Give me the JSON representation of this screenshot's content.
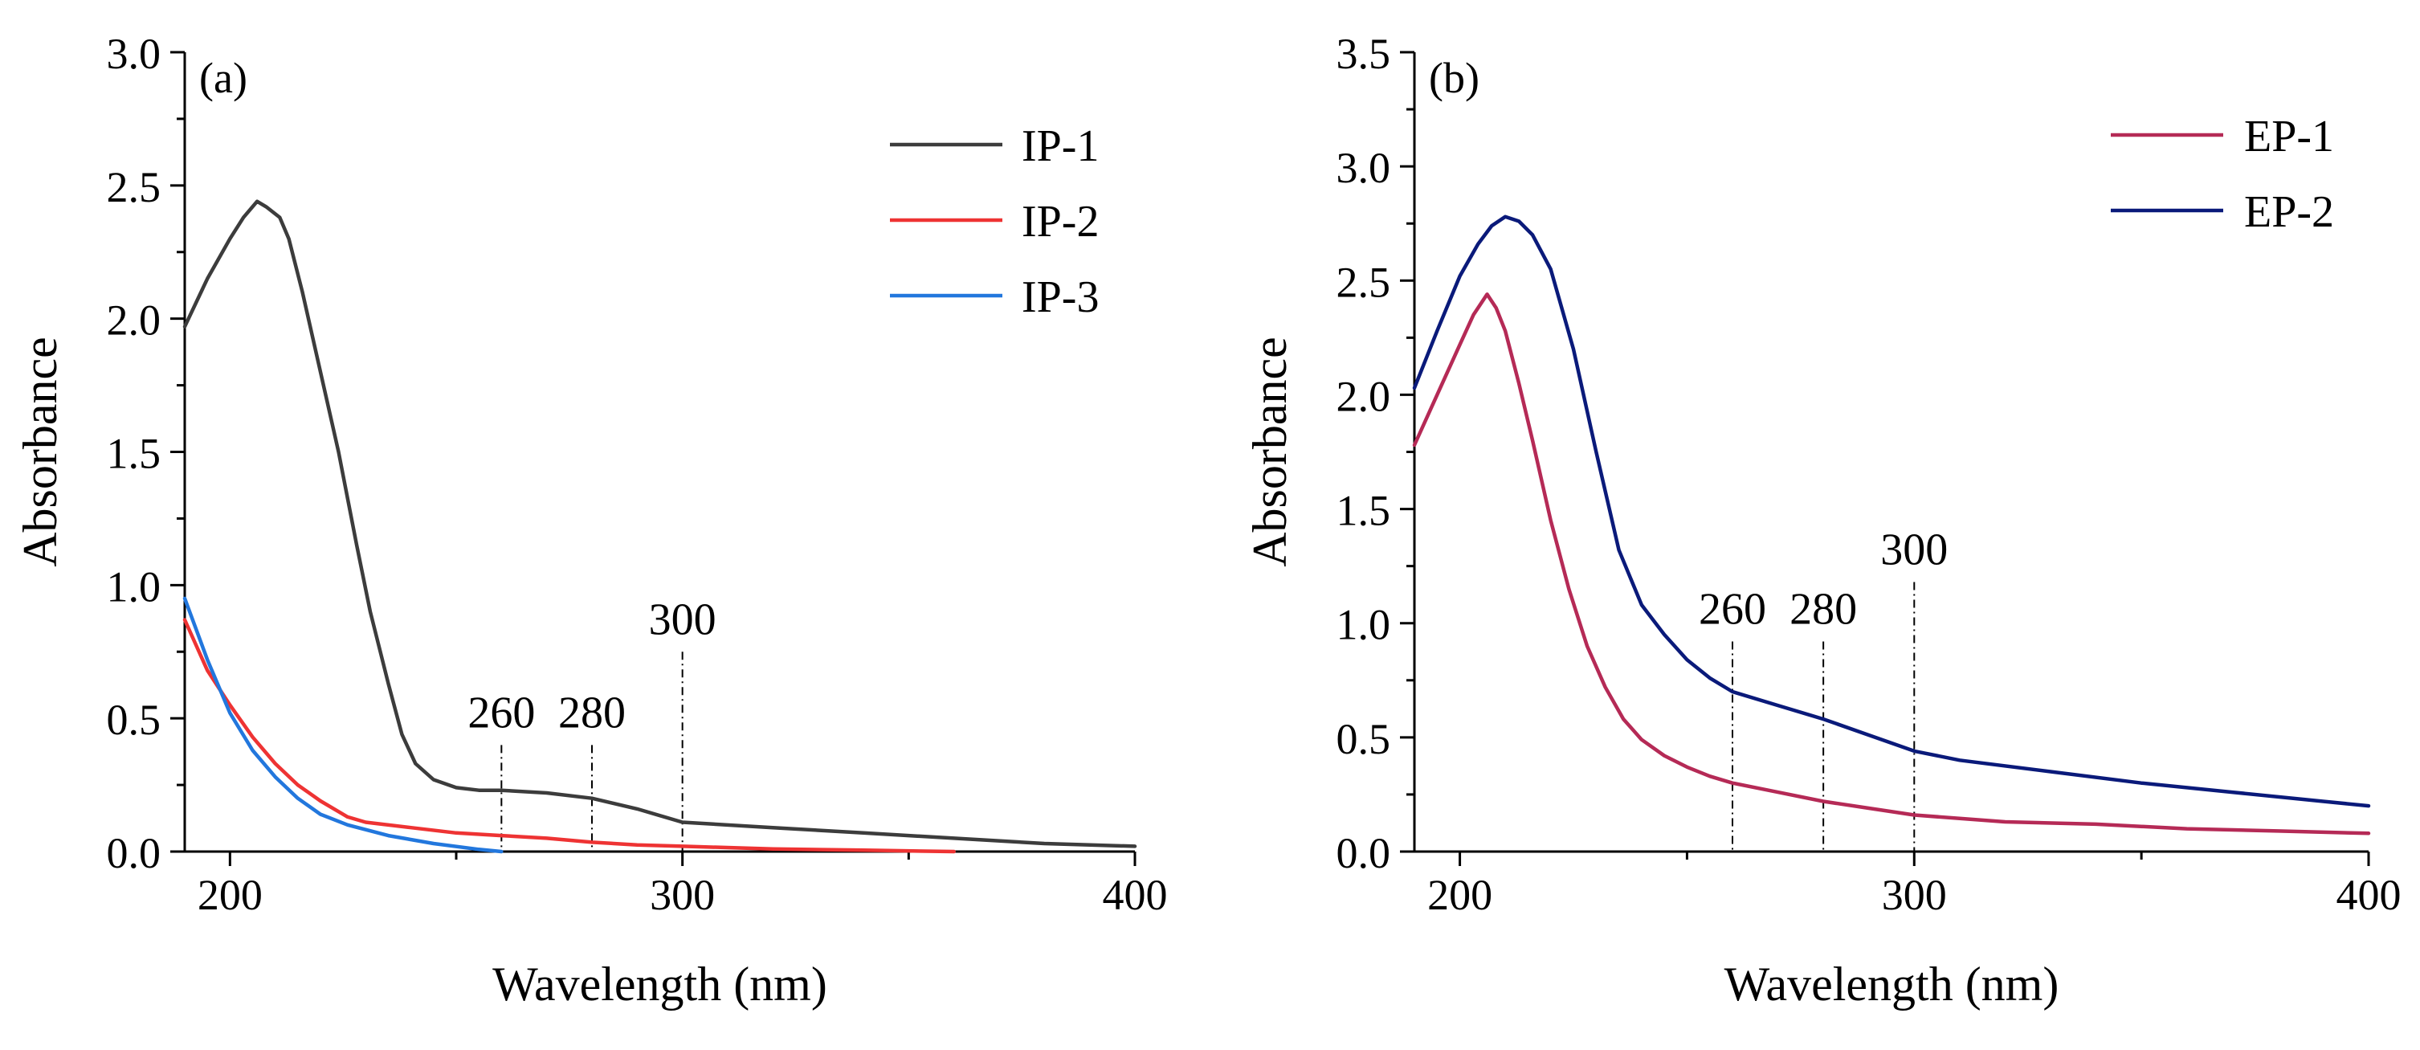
{
  "chart_data": [
    {
      "type": "line",
      "panel_label": "(a)",
      "xlabel": "Wavelength (nm)",
      "ylabel": "Absorbance",
      "xlim": [
        190,
        400
      ],
      "ylim": [
        0,
        3.0
      ],
      "x_ticks": [
        200,
        300,
        400
      ],
      "x_tick_labels": [
        "200",
        "300",
        "400"
      ],
      "y_ticks": [
        0,
        0.5,
        1.0,
        1.5,
        2.0,
        2.5,
        3.0
      ],
      "y_tick_labels": [
        "0.0",
        "0.5",
        "1.0",
        "1.5",
        "2.0",
        "2.5",
        "3.0"
      ],
      "grid": false,
      "legend_position": "top-right",
      "annotations": [
        {
          "x": 260,
          "y_top": 0.4,
          "text": "260"
        },
        {
          "x": 280,
          "y_top": 0.4,
          "text": "280"
        },
        {
          "x": 300,
          "y_top": 0.75,
          "text": "300"
        }
      ],
      "series": [
        {
          "name": "IP-1",
          "color": "#3c3c3c",
          "x": [
            190,
            195,
            200,
            203,
            206,
            208,
            211,
            213,
            216,
            220,
            224,
            228,
            231,
            235,
            238,
            241,
            245,
            250,
            255,
            260,
            270,
            280,
            290,
            300,
            320,
            340,
            360,
            380,
            400
          ],
          "y": [
            1.97,
            2.15,
            2.3,
            2.38,
            2.44,
            2.42,
            2.38,
            2.3,
            2.1,
            1.8,
            1.5,
            1.15,
            0.9,
            0.63,
            0.44,
            0.33,
            0.27,
            0.24,
            0.23,
            0.23,
            0.22,
            0.2,
            0.16,
            0.11,
            0.09,
            0.07,
            0.05,
            0.03,
            0.02
          ]
        },
        {
          "name": "IP-2",
          "color": "#ee3333",
          "x": [
            190,
            195,
            200,
            205,
            210,
            215,
            220,
            226,
            230,
            240,
            250,
            260,
            270,
            280,
            290,
            300,
            320,
            340,
            360
          ],
          "y": [
            0.87,
            0.68,
            0.55,
            0.43,
            0.33,
            0.25,
            0.19,
            0.13,
            0.11,
            0.09,
            0.07,
            0.06,
            0.05,
            0.035,
            0.025,
            0.02,
            0.01,
            0.005,
            0.0
          ]
        },
        {
          "name": "IP-3",
          "color": "#2277dd",
          "x": [
            190,
            195,
            200,
            205,
            210,
            215,
            220,
            226,
            235,
            245,
            255,
            260
          ],
          "y": [
            0.95,
            0.72,
            0.52,
            0.38,
            0.28,
            0.2,
            0.14,
            0.1,
            0.06,
            0.03,
            0.008,
            0.0
          ]
        }
      ]
    },
    {
      "type": "line",
      "panel_label": "(b)",
      "xlabel": "Wavelength (nm)",
      "ylabel": "Absorbance",
      "xlim": [
        190,
        400
      ],
      "ylim": [
        0,
        3.5
      ],
      "x_ticks": [
        200,
        300,
        400
      ],
      "x_tick_labels": [
        "200",
        "300",
        "400"
      ],
      "y_ticks": [
        0,
        0.5,
        1.0,
        1.5,
        2.0,
        2.5,
        3.0,
        3.5
      ],
      "y_tick_labels": [
        "0.0",
        "0.5",
        "1.0",
        "1.5",
        "2.0",
        "2.5",
        "3.0",
        "3.5"
      ],
      "grid": false,
      "legend_position": "top-right",
      "annotations": [
        {
          "x": 260,
          "y_top": 0.92,
          "text": "260"
        },
        {
          "x": 280,
          "y_top": 0.92,
          "text": "280"
        },
        {
          "x": 300,
          "y_top": 1.18,
          "text": "300"
        }
      ],
      "series": [
        {
          "name": "EP-1",
          "color": "#b52a56",
          "x": [
            190,
            195,
            200,
            203,
            206,
            208,
            210,
            213,
            216,
            220,
            224,
            228,
            232,
            236,
            240,
            245,
            250,
            255,
            260,
            270,
            280,
            290,
            300,
            320,
            340,
            360,
            380,
            400
          ],
          "y": [
            1.78,
            2.0,
            2.22,
            2.35,
            2.44,
            2.38,
            2.28,
            2.05,
            1.8,
            1.45,
            1.15,
            0.9,
            0.72,
            0.58,
            0.49,
            0.42,
            0.37,
            0.33,
            0.3,
            0.26,
            0.22,
            0.19,
            0.16,
            0.13,
            0.12,
            0.1,
            0.09,
            0.08
          ]
        },
        {
          "name": "EP-2",
          "color": "#0a1a7a",
          "x": [
            190,
            195,
            200,
            204,
            207,
            210,
            213,
            216,
            220,
            225,
            230,
            235,
            240,
            245,
            250,
            255,
            260,
            270,
            280,
            290,
            300,
            310,
            330,
            350,
            370,
            390,
            400
          ],
          "y": [
            2.03,
            2.28,
            2.52,
            2.66,
            2.74,
            2.78,
            2.76,
            2.7,
            2.55,
            2.2,
            1.75,
            1.32,
            1.08,
            0.95,
            0.84,
            0.76,
            0.7,
            0.64,
            0.58,
            0.51,
            0.44,
            0.4,
            0.35,
            0.3,
            0.26,
            0.22,
            0.2
          ]
        }
      ]
    }
  ]
}
